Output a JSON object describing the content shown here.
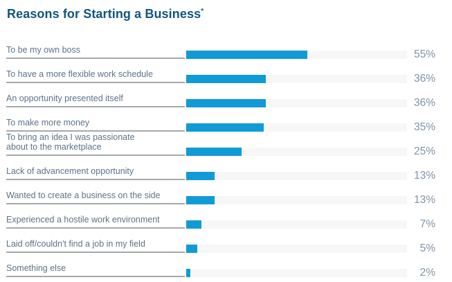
{
  "header": {
    "title": "Reasons for Starting a Business",
    "note_marker": "*"
  },
  "colors": {
    "title": "#10557d",
    "bar_fill": "#109ad6",
    "bar_track": "#f7f7f8",
    "label_text": "#5d7289",
    "value_text": "#7f93a6",
    "label_rule": "#a5a8ab"
  },
  "chart_data": {
    "type": "bar",
    "orientation": "horizontal",
    "title": "Reasons for Starting a Business*",
    "categories": [
      "To be my own boss",
      "To have a more flexible work schedule",
      "An opportunity presented itself",
      "To make more money",
      "To bring an idea I was passionate\nabout to the marketplace",
      "Lack of advancement opportunity",
      "Wanted to create a business on the side",
      "Experienced a hostile work environment",
      "Laid off/couldn't find a job in my field",
      "Something else"
    ],
    "values": [
      55,
      36,
      36,
      35,
      25,
      13,
      13,
      7,
      5,
      2
    ],
    "value_labels": [
      "55%",
      "36%",
      "36%",
      "35%",
      "25%",
      "13%",
      "13%",
      "7%",
      "5%",
      "2%"
    ],
    "xlabel": "",
    "ylabel": "",
    "xlim": [
      0,
      100
    ],
    "grid": false,
    "legend": "none"
  }
}
